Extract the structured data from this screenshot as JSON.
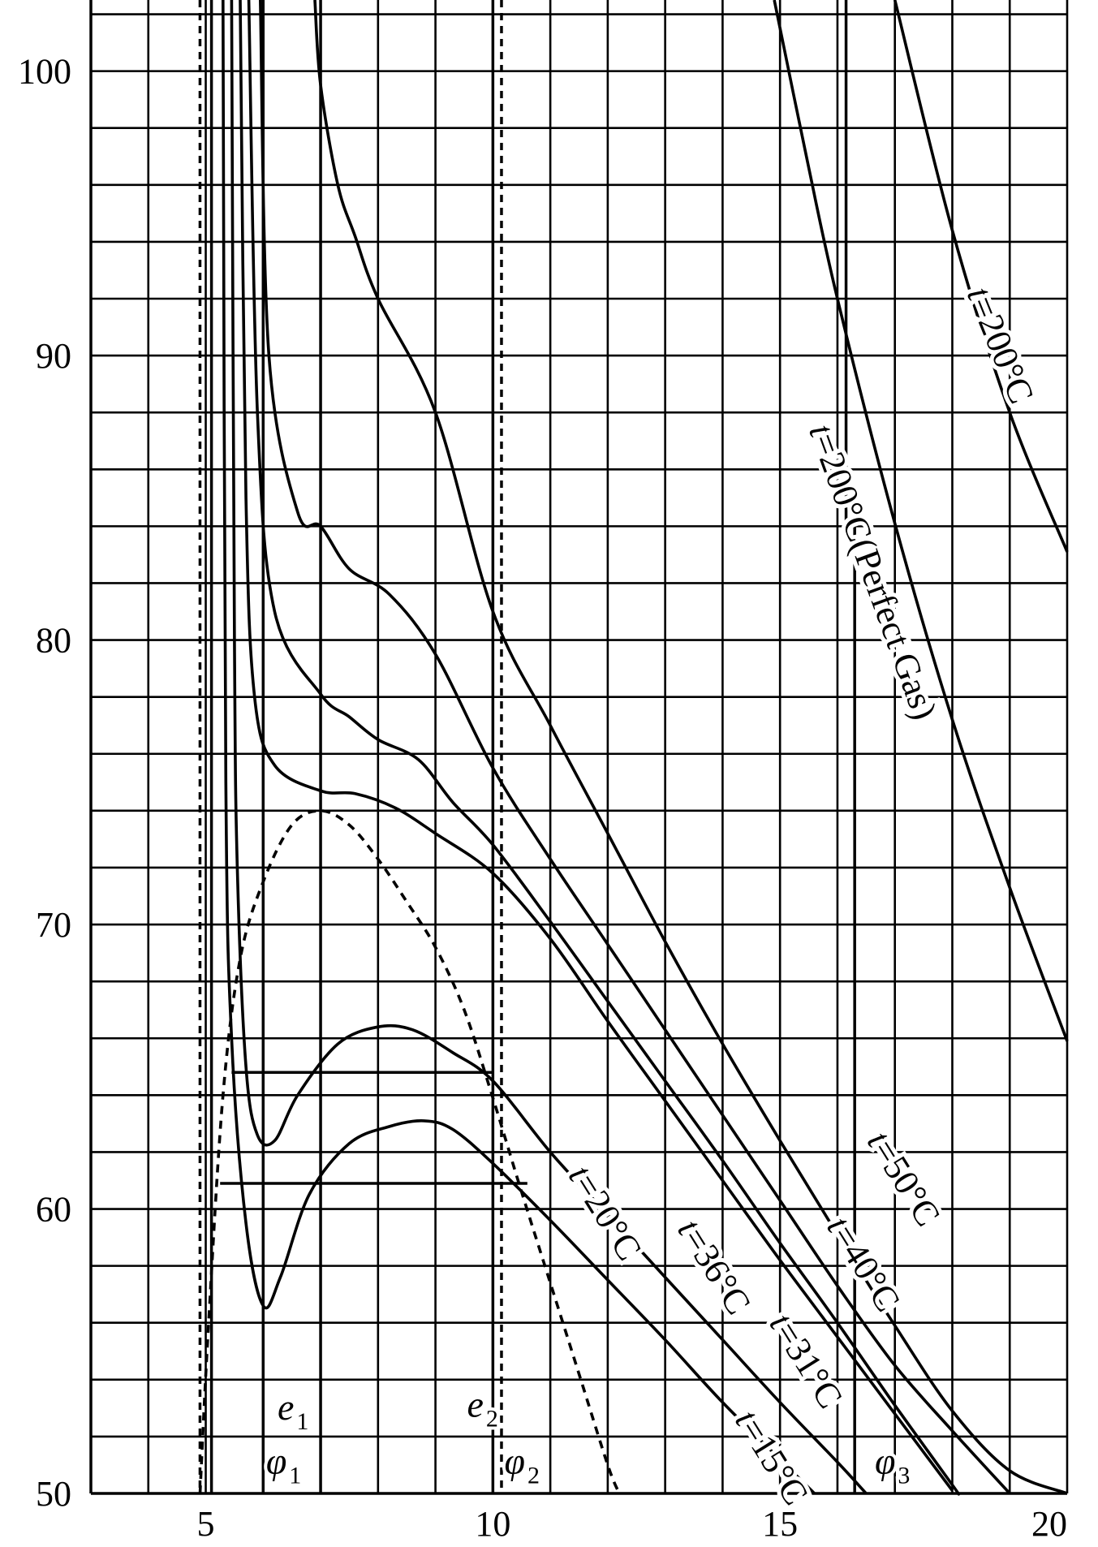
{
  "chart_data": {
    "type": "line",
    "title": "",
    "xlabel": "",
    "ylabel": "",
    "xlim": [
      3,
      20
    ],
    "ylim": [
      50,
      102.5
    ],
    "x_ticks": [
      "5",
      "10",
      "15",
      "20"
    ],
    "x_tick_values": [
      5,
      10,
      15,
      20
    ],
    "y_ticks": [
      "50",
      "60",
      "70",
      "80",
      "90",
      "100"
    ],
    "y_tick_values": [
      50,
      60,
      70,
      80,
      90,
      100
    ],
    "grid": true,
    "grid_x": [
      3,
      4,
      5,
      6,
      7,
      8,
      9,
      10,
      11,
      12,
      13,
      14,
      15,
      16,
      17,
      18,
      19,
      20
    ],
    "grid_y": [
      50,
      52,
      54,
      56,
      58,
      60,
      62,
      64,
      66,
      68,
      70,
      72,
      74,
      76,
      78,
      80,
      82,
      84,
      86,
      88,
      90,
      92,
      94,
      96,
      98,
      100,
      102
    ],
    "series": [
      {
        "name": "t=15°C",
        "label_parts": [
          "t",
          "=15°C"
        ],
        "style": "solid",
        "points": [
          [
            5.3,
            102.5
          ],
          [
            5.35,
            75
          ],
          [
            5.45,
            66
          ],
          [
            5.7,
            59.5
          ],
          [
            6.0,
            56.6
          ],
          [
            6.3,
            57.6
          ],
          [
            6.8,
            60.5
          ],
          [
            7.5,
            62.3
          ],
          [
            8.2,
            62.9
          ],
          [
            8.8,
            63.1
          ],
          [
            9.3,
            62.8
          ],
          [
            10.0,
            61.6
          ],
          [
            11,
            59.6
          ],
          [
            12,
            57.5
          ],
          [
            13,
            55.4
          ],
          [
            14,
            53.2
          ],
          [
            15,
            51.2
          ],
          [
            15.6,
            50
          ]
        ]
      },
      {
        "name": "t=20°C",
        "label_parts": [
          "t",
          "=20°C"
        ],
        "style": "solid",
        "points": [
          [
            5.45,
            102.5
          ],
          [
            5.5,
            80
          ],
          [
            5.55,
            72
          ],
          [
            5.7,
            65
          ],
          [
            5.9,
            62.6
          ],
          [
            6.2,
            62.4
          ],
          [
            6.6,
            64
          ],
          [
            7.3,
            65.8
          ],
          [
            8.0,
            66.4
          ],
          [
            8.6,
            66.3
          ],
          [
            9.3,
            65.5
          ],
          [
            10.0,
            64.5
          ],
          [
            11,
            62
          ],
          [
            12,
            59.8
          ],
          [
            13,
            57.6
          ],
          [
            14,
            55.4
          ],
          [
            15,
            53.2
          ],
          [
            16,
            51.1
          ],
          [
            16.5,
            50
          ]
        ]
      },
      {
        "name": "t=31°C",
        "label_parts": [
          "t",
          "=31°C"
        ],
        "style": "solid",
        "points": [
          [
            5.6,
            102.5
          ],
          [
            5.7,
            85
          ],
          [
            5.85,
            78
          ],
          [
            6.2,
            75.6
          ],
          [
            7.0,
            74.7
          ],
          [
            7.6,
            74.6
          ],
          [
            8.3,
            74.1
          ],
          [
            9.0,
            73.2
          ],
          [
            10.0,
            71.8
          ],
          [
            11,
            69.5
          ],
          [
            12,
            66.6
          ],
          [
            13,
            63.8
          ],
          [
            14,
            61.0
          ],
          [
            15,
            58.2
          ],
          [
            16,
            55.5
          ],
          [
            17,
            52.8
          ],
          [
            18,
            50.1
          ]
        ]
      },
      {
        "name": "t=36°C",
        "label_parts": [
          "t",
          "=36°C"
        ],
        "style": "solid",
        "points": [
          [
            5.75,
            102.5
          ],
          [
            5.9,
            88
          ],
          [
            6.2,
            81
          ],
          [
            7.0,
            78.1
          ],
          [
            7.5,
            77.3
          ],
          [
            8.0,
            76.5
          ],
          [
            8.7,
            75.8
          ],
          [
            9.3,
            74.3
          ],
          [
            10.0,
            72.8
          ],
          [
            11,
            70.1
          ],
          [
            12,
            67.3
          ],
          [
            13,
            64.5
          ],
          [
            14,
            61.7
          ],
          [
            15,
            58.8
          ],
          [
            16,
            56.0
          ],
          [
            17,
            53.1
          ],
          [
            18,
            50.3
          ],
          [
            18.1,
            50
          ]
        ]
      },
      {
        "name": "t=40°C",
        "label_parts": [
          "t",
          "=40°C"
        ],
        "style": "solid",
        "points": [
          [
            5.95,
            102.5
          ],
          [
            6.1,
            90
          ],
          [
            6.6,
            84.5
          ],
          [
            7.0,
            84
          ],
          [
            7.5,
            82.5
          ],
          [
            8.2,
            81.6
          ],
          [
            9.0,
            79.5
          ],
          [
            10.0,
            75.5
          ],
          [
            11,
            72.3
          ],
          [
            12,
            69.3
          ],
          [
            13,
            66.3
          ],
          [
            14,
            63.3
          ],
          [
            15,
            60.3
          ],
          [
            16,
            57.3
          ],
          [
            17,
            54.5
          ],
          [
            18,
            52.2
          ],
          [
            19,
            50
          ]
        ]
      },
      {
        "name": "t=50°C",
        "label_parts": [
          "t",
          "=50°C"
        ],
        "style": "solid",
        "points": [
          [
            6.9,
            102.5
          ],
          [
            7.0,
            99.5
          ],
          [
            7.3,
            96
          ],
          [
            7.6,
            94.2
          ],
          [
            8.0,
            92
          ],
          [
            9.0,
            88
          ],
          [
            10.0,
            81
          ],
          [
            11,
            77
          ],
          [
            12,
            73.2
          ],
          [
            13,
            69.4
          ],
          [
            14,
            65.8
          ],
          [
            15,
            62.4
          ],
          [
            16,
            59.1
          ],
          [
            17,
            55.9
          ],
          [
            18,
            52.9
          ],
          [
            19,
            50.8
          ],
          [
            20,
            50
          ]
        ]
      },
      {
        "name": "t=200°C",
        "label_parts": [
          "t",
          "=200°C"
        ],
        "style": "solid",
        "points": [
          [
            17.0,
            102.5
          ],
          [
            18,
            94.4
          ],
          [
            19,
            88
          ],
          [
            20,
            83.1
          ]
        ]
      },
      {
        "name": "t=200°C(Perfect Gas)",
        "label_parts": [
          "t",
          "=200°C(Perfect Gas)"
        ],
        "style": "solid",
        "points": [
          [
            14.9,
            102.5
          ],
          [
            15.5,
            96.6
          ],
          [
            16,
            92
          ],
          [
            17,
            84.1
          ],
          [
            18,
            77.2
          ],
          [
            19,
            71.3
          ],
          [
            20,
            65.9
          ]
        ]
      },
      {
        "name": "",
        "style": "dashed",
        "points": [
          [
            4.9,
            50
          ],
          [
            5.05,
            56
          ],
          [
            5.3,
            64
          ],
          [
            5.6,
            68.8
          ],
          [
            6.0,
            71.5
          ],
          [
            6.5,
            73.5
          ],
          [
            7.0,
            74.0
          ],
          [
            7.5,
            73.5
          ],
          [
            8.0,
            72.3
          ],
          [
            8.5,
            70.8
          ],
          [
            9.0,
            69.2
          ],
          [
            9.5,
            67.0
          ],
          [
            10.0,
            63.9
          ],
          [
            10.5,
            60.6
          ],
          [
            11.0,
            57.4
          ],
          [
            11.5,
            54.2
          ],
          [
            12.0,
            51.0
          ],
          [
            12.2,
            50
          ]
        ]
      }
    ],
    "annotations": [
      {
        "text": "e",
        "sub": "1"
      },
      {
        "text": "φ",
        "sub": "1"
      },
      {
        "text": "e",
        "sub": "2"
      },
      {
        "text": "φ",
        "sub": "2"
      },
      {
        "text": "φ",
        "sub": "3"
      }
    ],
    "horizontal_lines": [
      {
        "y": 64.8,
        "x_from": 5.45,
        "x_to": 10.0
      },
      {
        "y": 60.9,
        "x_from": 5.25,
        "x_to": 10.6
      }
    ],
    "vertical_lines": [
      {
        "x": 4.9,
        "style": "dashed",
        "y_from": 50,
        "y_to": 102.5
      },
      {
        "x": 5.1,
        "style": "solid",
        "y_from": 50,
        "y_to": 102.5
      },
      {
        "x": 6.0,
        "style": "solid",
        "y_from": 50,
        "y_to": 102.5
      },
      {
        "x": 7.0,
        "style": "solid",
        "y_from": 50,
        "y_to": 102.5
      },
      {
        "x": 10.0,
        "style": "solid",
        "y_from": 50,
        "y_to": 102.5
      },
      {
        "x": 10.15,
        "style": "dashed",
        "y_from": 50,
        "y_to": 102.5
      },
      {
        "x": 16.15,
        "style": "solid",
        "y_from": 84,
        "y_to": 102.5
      },
      {
        "x": 16.3,
        "style": "solid",
        "y_from": 50,
        "y_to": 84
      }
    ]
  }
}
